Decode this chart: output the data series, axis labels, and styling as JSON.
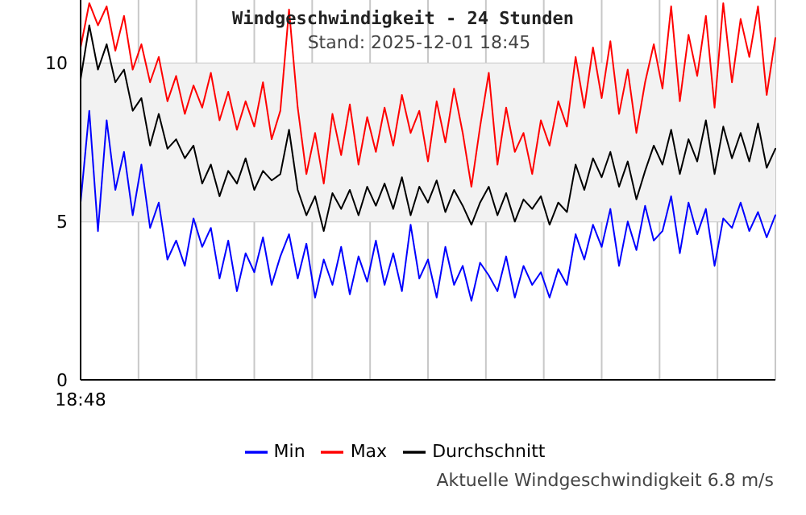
{
  "chart_data": {
    "type": "line",
    "title": "Windgeschwindigkeit - 24 Stunden",
    "subtitle": "Stand: 2025-12-01 18:45",
    "categories": [
      "18:48",
      null,
      null,
      null,
      null,
      null,
      null,
      null,
      null,
      null,
      null,
      null,
      null,
      null,
      null,
      null,
      null,
      null,
      null,
      null,
      null,
      null,
      null,
      null,
      null,
      null,
      null,
      null,
      null,
      null,
      null,
      null,
      null,
      null,
      null,
      null,
      null,
      null,
      null,
      null,
      null,
      null,
      null,
      null,
      null,
      null,
      null,
      null,
      null,
      null,
      null,
      null,
      null,
      null,
      null,
      null,
      null,
      null,
      null,
      null,
      null,
      null,
      null,
      null,
      null,
      null,
      null,
      null,
      null,
      null,
      null,
      null,
      null,
      null,
      null,
      null,
      null,
      null,
      null,
      null,
      null
    ],
    "series": [
      {
        "name": "Min",
        "color": "#0000ff",
        "values": [
          5.6,
          8.5,
          4.7,
          8.2,
          6.0,
          7.2,
          5.2,
          6.8,
          4.8,
          5.6,
          3.8,
          4.4,
          3.6,
          5.1,
          4.2,
          4.8,
          3.2,
          4.4,
          2.8,
          4.0,
          3.4,
          4.5,
          3.0,
          3.9,
          4.6,
          3.2,
          4.3,
          2.6,
          3.8,
          3.0,
          4.2,
          2.7,
          3.9,
          3.1,
          4.4,
          3.0,
          4.0,
          2.8,
          4.9,
          3.2,
          3.8,
          2.6,
          4.2,
          3.0,
          3.6,
          2.5,
          3.7,
          3.3,
          2.8,
          3.9,
          2.6,
          3.6,
          3.0,
          3.4,
          2.6,
          3.5,
          3.0,
          4.6,
          3.8,
          4.9,
          4.2,
          5.4,
          3.6,
          5.0,
          4.1,
          5.5,
          4.4,
          4.7,
          5.8,
          4.0,
          5.6,
          4.6,
          5.4,
          3.6,
          5.1,
          4.8,
          5.6,
          4.7,
          5.3,
          4.5,
          5.2
        ]
      },
      {
        "name": "Max",
        "color": "#ff0000",
        "values": [
          10.5,
          11.9,
          11.2,
          11.8,
          10.4,
          11.5,
          9.8,
          10.6,
          9.4,
          10.2,
          8.8,
          9.6,
          8.4,
          9.3,
          8.6,
          9.7,
          8.2,
          9.1,
          7.9,
          8.8,
          8.0,
          9.4,
          7.6,
          8.5,
          11.7,
          8.6,
          6.5,
          7.8,
          6.2,
          8.4,
          7.1,
          8.7,
          6.8,
          8.3,
          7.2,
          8.6,
          7.4,
          9.0,
          7.8,
          8.5,
          6.9,
          8.8,
          7.5,
          9.2,
          7.8,
          6.1,
          8.0,
          9.7,
          6.8,
          8.6,
          7.2,
          7.8,
          6.5,
          8.2,
          7.4,
          8.8,
          8.0,
          10.2,
          8.6,
          10.5,
          8.9,
          10.7,
          8.4,
          9.8,
          7.8,
          9.4,
          10.6,
          9.2,
          11.8,
          8.8,
          10.9,
          9.6,
          11.5,
          8.6,
          11.9,
          9.4,
          11.4,
          10.2,
          11.8,
          9.0,
          10.8
        ]
      },
      {
        "name": "Durchschnitt",
        "color": "#000000",
        "values": [
          9.5,
          11.2,
          9.8,
          10.6,
          9.4,
          9.8,
          8.5,
          8.9,
          7.4,
          8.4,
          7.3,
          7.6,
          7.0,
          7.4,
          6.2,
          6.8,
          5.8,
          6.6,
          6.2,
          7.0,
          6.0,
          6.6,
          6.3,
          6.5,
          7.9,
          6.0,
          5.2,
          5.8,
          4.7,
          5.9,
          5.4,
          6.0,
          5.2,
          6.1,
          5.5,
          6.2,
          5.4,
          6.4,
          5.2,
          6.1,
          5.6,
          6.3,
          5.3,
          6.0,
          5.5,
          4.9,
          5.6,
          6.1,
          5.2,
          5.9,
          5.0,
          5.7,
          5.4,
          5.8,
          4.9,
          5.6,
          5.3,
          6.8,
          6.0,
          7.0,
          6.4,
          7.2,
          6.1,
          6.9,
          5.7,
          6.6,
          7.4,
          6.8,
          7.9,
          6.5,
          7.6,
          6.9,
          8.2,
          6.5,
          8.0,
          7.0,
          7.8,
          6.9,
          8.1,
          6.7,
          7.3
        ]
      }
    ],
    "ylim": [
      0,
      12
    ],
    "yticks": [
      0,
      5,
      10
    ],
    "bands": [
      {
        "axis": "y",
        "from": 5,
        "to": 10,
        "color": "#f2f2f2"
      }
    ],
    "grid": true,
    "legend": "bottom",
    "marker": "none",
    "line_style": "solid",
    "annotations": [
      "Aktuelle Windgeschwindigkeit 6.8 m/s"
    ]
  }
}
